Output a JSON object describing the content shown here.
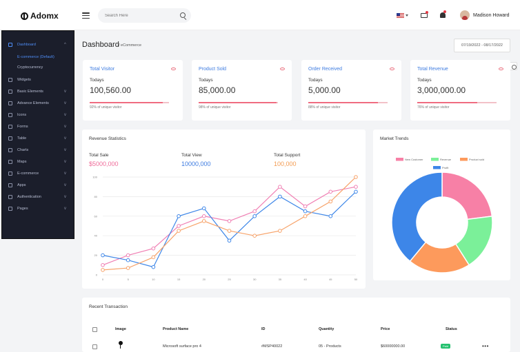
{
  "brand": {
    "name": "Adomx"
  },
  "search": {
    "placeholder": "Search Here"
  },
  "user": {
    "name": "Madison Howard"
  },
  "sidebar": {
    "items": [
      {
        "label": "Dashboard",
        "caret": "^",
        "active": true
      },
      {
        "label": "Widgets",
        "caret": ""
      },
      {
        "label": "Basic Elements",
        "caret": "v"
      },
      {
        "label": "Advance Elements",
        "caret": "v"
      },
      {
        "label": "Icons",
        "caret": "v"
      },
      {
        "label": "Forms",
        "caret": "v"
      },
      {
        "label": "Table",
        "caret": "v"
      },
      {
        "label": "Charts",
        "caret": "v"
      },
      {
        "label": "Maps",
        "caret": "v"
      },
      {
        "label": "E-commerce",
        "caret": "v"
      },
      {
        "label": "Apps",
        "caret": "v"
      },
      {
        "label": "Authentication",
        "caret": "v"
      },
      {
        "label": "Pages",
        "caret": "v"
      }
    ],
    "subitems": [
      {
        "label": "E-commerce (Default)",
        "active": true
      },
      {
        "label": "Cryptocurrency",
        "active": false
      }
    ]
  },
  "page": {
    "title": "Dashboard",
    "subtitle": "/ eCommerce",
    "date_range": "07/19/2022 - 08/17/2022"
  },
  "stats": [
    {
      "title": "Total Visitor",
      "todays": "Todays",
      "value": "100,560.00",
      "note": "92% of unique visitor",
      "progress": 0.92
    },
    {
      "title": "Product Sold",
      "todays": "Todays",
      "value": "85,000.00",
      "note": "98% of unique visitor",
      "progress": 0.98
    },
    {
      "title": "Order Received",
      "todays": "Todays",
      "value": "5,000.00",
      "note": "88% of unique visitor",
      "progress": 0.88
    },
    {
      "title": "Total Revenue",
      "todays": "Todays",
      "value": "3,000,000.00",
      "note": "76% of unique visitor",
      "progress": 0.76
    }
  ],
  "revenue": {
    "title": "Revenue Statistics",
    "totals": [
      {
        "label": "Total Sale",
        "value": "$5000,000",
        "color": "#ef6c9a"
      },
      {
        "label": "Total View",
        "value": "10000,000",
        "color": "#3d7be0"
      },
      {
        "label": "Total Support",
        "value": "100,000",
        "color": "#f39c52"
      }
    ]
  },
  "market": {
    "title": "Market Trends"
  },
  "chart_data": [
    {
      "type": "line",
      "x": [
        0,
        5,
        10,
        15,
        20,
        25,
        30,
        35,
        40,
        45,
        50
      ],
      "ylim": [
        0,
        100
      ],
      "yticks": [
        0,
        20,
        40,
        60,
        80,
        100
      ],
      "grid": true,
      "series": [
        {
          "name": "",
          "color": "#f07fb3",
          "values": [
            10,
            20,
            27,
            50,
            60,
            55,
            65,
            90,
            70,
            85,
            90
          ]
        },
        {
          "name": "",
          "color": "#3d86e8",
          "values": [
            20,
            15,
            8,
            60,
            68,
            35,
            60,
            80,
            65,
            60,
            85
          ]
        },
        {
          "name": "",
          "color": "#f7a36a",
          "values": [
            5,
            7,
            18,
            45,
            55,
            45,
            40,
            45,
            60,
            75,
            100
          ]
        }
      ]
    },
    {
      "type": "pie",
      "donut": true,
      "legend": [
        {
          "label": "New Customer",
          "color": "#f780a6"
        },
        {
          "label": "Revenue",
          "color": "#7bf099"
        },
        {
          "label": "Product sold",
          "color": "#fd9a5c"
        },
        {
          "label": "Profit",
          "color": "#3d86e8"
        }
      ],
      "slices": [
        {
          "name": "New Customer",
          "value": 23,
          "color": "#f780a6"
        },
        {
          "name": "Revenue",
          "value": 18,
          "color": "#7bf099"
        },
        {
          "name": "Product sold",
          "value": 20,
          "color": "#fd9a5c"
        },
        {
          "name": "Profit",
          "value": 39,
          "color": "#3d86e8"
        }
      ]
    }
  ],
  "transactions": {
    "title": "Recent Transaction",
    "headers": {
      "image": "Image",
      "product": "Product Name",
      "id": "ID",
      "quantity": "Quantity",
      "price": "Price",
      "status": "Status"
    },
    "rows": [
      {
        "product": "Microsoft surface pro 4",
        "id": "#MSP40022",
        "quantity": "05 - Products",
        "price": "$60000000.00",
        "status": "Paid",
        "more": "•••"
      }
    ]
  }
}
